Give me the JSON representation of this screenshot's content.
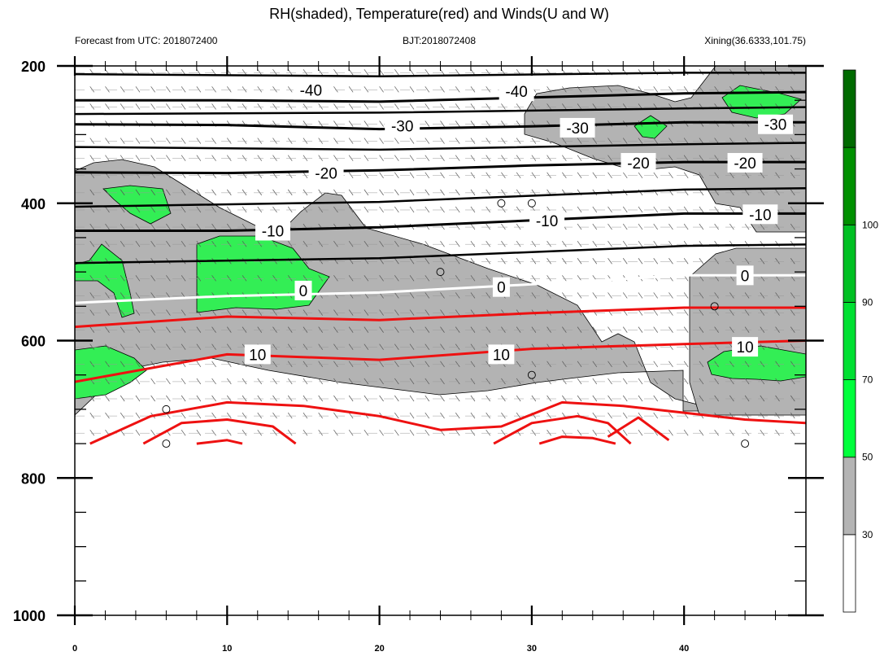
{
  "chart_data": {
    "type": "contour-cross-section",
    "title": "RH(shaded), Temperature(red) and Winds(U and W)",
    "subtitle_left": "Forecast from UTC: 2018072400",
    "subtitle_center": "BJT:2018072408",
    "subtitle_right": "Xining(36.6333,101.75)",
    "xlabel": "",
    "ylabel": "",
    "x_range": [
      0,
      48
    ],
    "y_range": [
      200,
      1000
    ],
    "y_reversed": true,
    "x_ticks": [
      0,
      10,
      20,
      30,
      40
    ],
    "y_ticks": [
      200,
      400,
      600,
      800,
      1000
    ],
    "x_tick_labels": [
      "0",
      "10",
      "20",
      "30",
      "40"
    ],
    "y_tick_labels": [
      "200",
      "400",
      "600",
      "800",
      "1000"
    ],
    "colorbar": {
      "levels": [
        30,
        50,
        70,
        90,
        100
      ],
      "labels": [
        "30",
        "50",
        "70",
        "90",
        "100"
      ],
      "colors": [
        "#ffffff",
        "#b4b4b4",
        "#00ff3c",
        "#00e032",
        "#00c023",
        "#009000",
        "#006a00"
      ]
    },
    "colors": {
      "gray_fill": "#b3b3b3",
      "green_fill": "#33ee55",
      "temp_cold": "#000000",
      "temp_zero": "#ffffff",
      "temp_warm": "#ee1111"
    },
    "temperature_contours": [
      {
        "value": -40,
        "label": "-40",
        "color": "#000000",
        "points": [
          [
            0,
            250
          ],
          [
            10,
            250
          ],
          [
            20,
            252
          ],
          [
            30,
            246
          ],
          [
            40,
            240
          ],
          [
            48,
            238
          ]
        ],
        "labels_at": [
          [
            15.5,
            235
          ],
          [
            29,
            237
          ]
        ]
      },
      {
        "value": -30,
        "label": "-30",
        "color": "#000000",
        "points": [
          [
            0,
            285
          ],
          [
            10,
            286
          ],
          [
            20,
            292
          ],
          [
            30,
            288
          ],
          [
            40,
            282
          ],
          [
            48,
            282
          ]
        ],
        "labels_at": [
          [
            21.5,
            287
          ],
          [
            33,
            290
          ],
          [
            46,
            285
          ]
        ]
      },
      {
        "value": -20,
        "label": "-20",
        "color": "#000000",
        "points": [
          [
            0,
            355
          ],
          [
            10,
            356
          ],
          [
            20,
            352
          ],
          [
            30,
            345
          ],
          [
            40,
            340
          ],
          [
            48,
            340
          ]
        ],
        "labels_at": [
          [
            16.5,
            356
          ],
          [
            37,
            341
          ],
          [
            44,
            341
          ]
        ]
      },
      {
        "value": -10,
        "label": "-10",
        "color": "#000000",
        "points": [
          [
            0,
            440
          ],
          [
            10,
            440
          ],
          [
            20,
            435
          ],
          [
            30,
            425
          ],
          [
            40,
            415
          ],
          [
            48,
            415
          ]
        ],
        "labels_at": [
          [
            13,
            440
          ],
          [
            31,
            425
          ],
          [
            45,
            416
          ]
        ]
      },
      {
        "value": 0,
        "label": "0",
        "color": "#ffffff",
        "points": [
          [
            0,
            545
          ],
          [
            10,
            535
          ],
          [
            20,
            530
          ],
          [
            30,
            518
          ],
          [
            40,
            505
          ],
          [
            48,
            505
          ]
        ],
        "labels_at": [
          [
            15,
            527
          ],
          [
            28,
            522
          ],
          [
            44,
            505
          ]
        ]
      },
      {
        "value": 10,
        "label": "10",
        "color": "#ee1111",
        "points": [
          [
            0,
            660
          ],
          [
            10,
            620
          ],
          [
            20,
            628
          ],
          [
            30,
            612
          ],
          [
            40,
            605
          ],
          [
            48,
            600
          ]
        ],
        "labels_at": [
          [
            12,
            620
          ],
          [
            28,
            620
          ],
          [
            44,
            609
          ]
        ]
      }
    ],
    "wind_barbs": "U and W",
    "calm_markers": [
      [
        28,
        400
      ],
      [
        30,
        400
      ],
      [
        24,
        500
      ],
      [
        42,
        550
      ],
      [
        6,
        700
      ],
      [
        30,
        650
      ],
      [
        6,
        750
      ],
      [
        44,
        750
      ]
    ]
  }
}
